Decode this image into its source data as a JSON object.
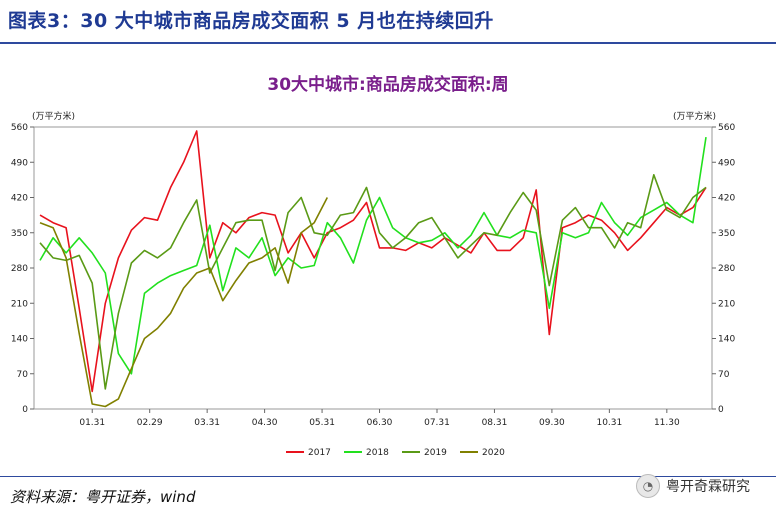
{
  "figure_title": "图表3：30 大中城市商品房成交面积 5 月也在持续回升",
  "source": "资料来源：粤开证券，wind",
  "brand": "粤开奇霖研究",
  "chart_data": {
    "type": "line",
    "title": "30大中城市:商品房成交面积:周",
    "y_unit_left": "(万平方米)",
    "y_unit_right": "(万平方米)",
    "ylim": [
      0,
      560
    ],
    "yticks": [
      0,
      70,
      140,
      210,
      280,
      350,
      420,
      490,
      560
    ],
    "x_positions": 52,
    "x_ticks": [
      {
        "label": "01.31",
        "pos": 4
      },
      {
        "label": "02.29",
        "pos": 8.4
      },
      {
        "label": "03.31",
        "pos": 12.8
      },
      {
        "label": "04.30",
        "pos": 17.2
      },
      {
        "label": "05.31",
        "pos": 21.6
      },
      {
        "label": "06.30",
        "pos": 26
      },
      {
        "label": "07.31",
        "pos": 30.4
      },
      {
        "label": "08.31",
        "pos": 34.8
      },
      {
        "label": "09.30",
        "pos": 39.2
      },
      {
        "label": "10.31",
        "pos": 43.6
      },
      {
        "label": "11.30",
        "pos": 48
      }
    ],
    "series": [
      {
        "name": "2017",
        "color": "#e8121d",
        "values": [
          385,
          370,
          360,
          200,
          35,
          210,
          300,
          355,
          380,
          375,
          440,
          490,
          552,
          300,
          370,
          350,
          380,
          390,
          385,
          310,
          350,
          300,
          350,
          360,
          375,
          410,
          320,
          320,
          315,
          330,
          320,
          340,
          325,
          310,
          350,
          315,
          315,
          340,
          435,
          148,
          360,
          370,
          385,
          375,
          350,
          315,
          340,
          370,
          400,
          385,
          400,
          440
        ]
      },
      {
        "name": "2018",
        "color": "#22e01e",
        "values": [
          295,
          340,
          310,
          340,
          310,
          270,
          110,
          70,
          230,
          250,
          265,
          275,
          285,
          365,
          235,
          320,
          300,
          340,
          265,
          300,
          280,
          285,
          370,
          340,
          290,
          375,
          420,
          360,
          340,
          330,
          335,
          350,
          320,
          345,
          390,
          345,
          340,
          355,
          350,
          200,
          350,
          340,
          350,
          410,
          370,
          345,
          380,
          395,
          410,
          385,
          370,
          540
        ]
      },
      {
        "name": "2019",
        "color": "#5a9a16",
        "values": [
          330,
          300,
          295,
          305,
          250,
          40,
          190,
          290,
          315,
          300,
          320,
          370,
          415,
          270,
          320,
          370,
          375,
          375,
          275,
          390,
          420,
          350,
          345,
          385,
          390,
          440,
          350,
          320,
          340,
          370,
          380,
          340,
          300,
          325,
          350,
          345,
          390,
          430,
          395,
          245,
          375,
          400,
          360,
          360,
          320,
          370,
          360,
          465,
          395,
          380,
          420,
          440
        ]
      },
      {
        "name": "2020",
        "color": "#808000",
        "values": [
          370,
          360,
          300,
          150,
          10,
          5,
          20,
          80,
          140,
          160,
          190,
          240,
          270,
          280,
          215,
          255,
          290,
          300,
          320,
          250,
          350,
          370,
          420
        ]
      }
    ]
  }
}
